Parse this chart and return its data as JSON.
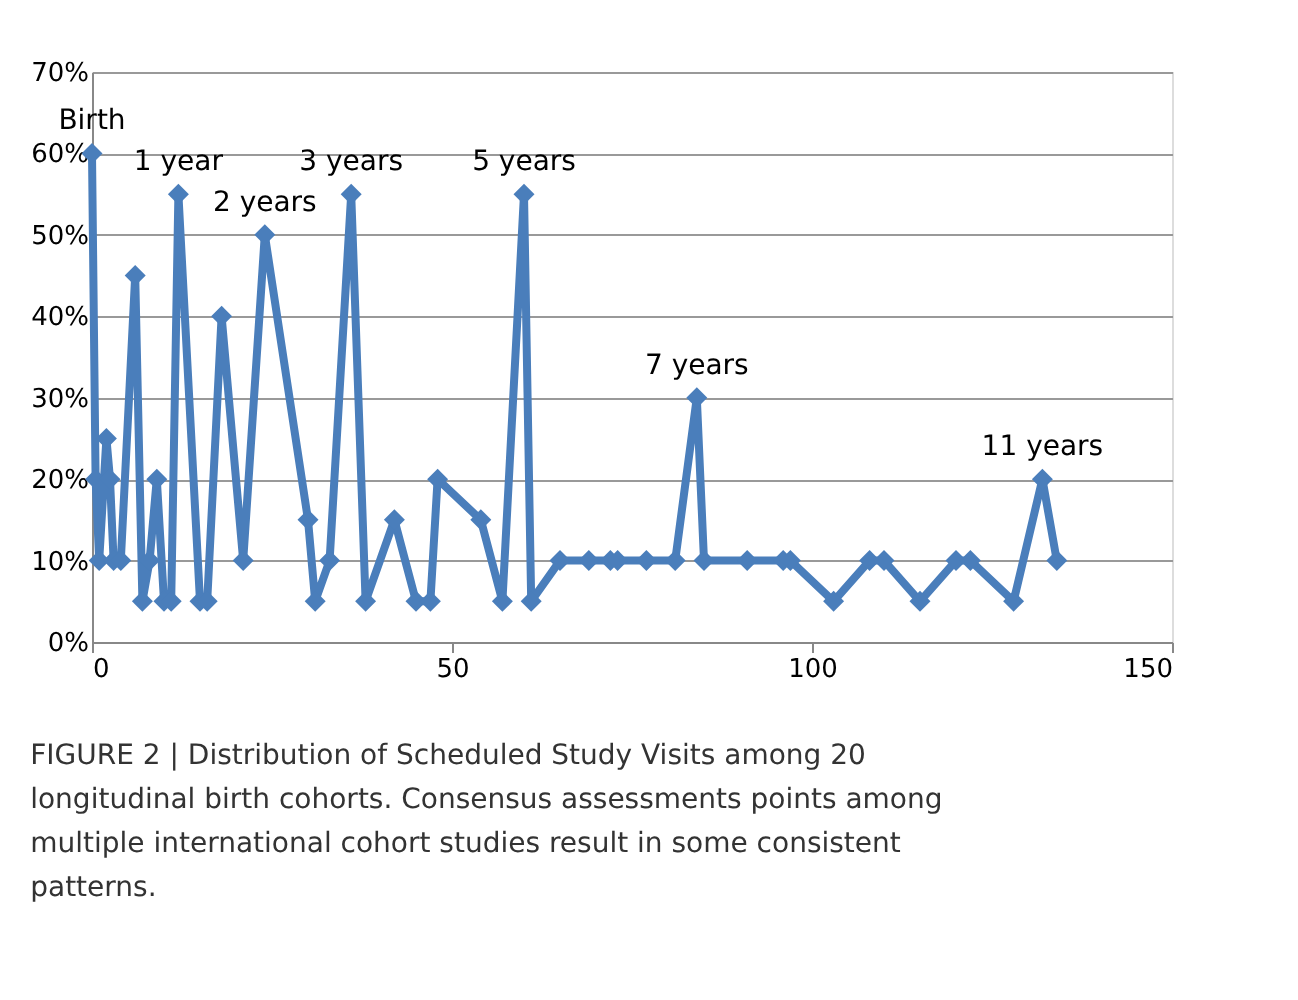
{
  "chart_data": {
    "type": "line",
    "x": [
      0,
      0.5,
      1,
      2,
      2.5,
      3,
      4,
      6,
      7,
      8,
      9,
      10,
      11,
      12,
      15,
      16,
      18,
      21,
      24,
      30,
      31,
      33,
      36,
      38,
      42,
      45,
      47,
      48,
      54,
      57,
      60,
      61,
      65,
      69,
      72,
      73,
      77,
      81,
      84,
      85,
      91,
      96,
      97,
      103,
      108,
      110,
      115,
      120,
      122,
      128,
      132,
      134
    ],
    "series": [
      {
        "color": "#4a7ebb",
        "values": [
          60,
          20,
          10,
          25,
          20,
          10,
          10,
          45,
          5,
          10,
          20,
          5,
          5,
          55,
          5,
          5,
          40,
          10,
          50,
          15,
          5,
          10,
          55,
          5,
          15,
          5,
          5,
          20,
          15,
          5,
          55,
          5,
          10,
          10,
          10,
          10,
          10,
          10,
          30,
          10,
          10,
          10,
          10,
          5,
          10,
          10,
          5,
          10,
          10,
          5,
          20,
          10
        ]
      }
    ],
    "xlim": [
      0,
      150
    ],
    "xticks": [
      0,
      50,
      100,
      150
    ],
    "ylim": [
      0,
      70
    ],
    "yticks": [
      {
        "value": 0,
        "label": "0%"
      },
      {
        "value": 10,
        "label": "10%"
      },
      {
        "value": 20,
        "label": "20%"
      },
      {
        "value": 30,
        "label": "30%"
      },
      {
        "value": 40,
        "label": "40%"
      },
      {
        "value": 50,
        "label": "50%"
      },
      {
        "value": 60,
        "label": "60%"
      },
      {
        "value": 70,
        "label": "70%"
      }
    ],
    "grid": "y",
    "marker": "diamond",
    "line_style": "solid",
    "annotations": [
      {
        "text": "Birth",
        "x": 0,
        "y": 60
      },
      {
        "text": "1 year",
        "x": 12,
        "y": 55
      },
      {
        "text": "2 years",
        "x": 24,
        "y": 50
      },
      {
        "text": "3 years",
        "x": 36,
        "y": 55
      },
      {
        "text": "5 years",
        "x": 60,
        "y": 55
      },
      {
        "text": "7 years",
        "x": 84,
        "y": 30
      },
      {
        "text": "11 years",
        "x": 132,
        "y": 20
      },
      "FIGURE 2 | Distribution of Scheduled Study Visits among 20 longitudinal birth cohorts. Consensus assessments points among multiple international cohort studies result in some consistent patterns."
    ]
  }
}
